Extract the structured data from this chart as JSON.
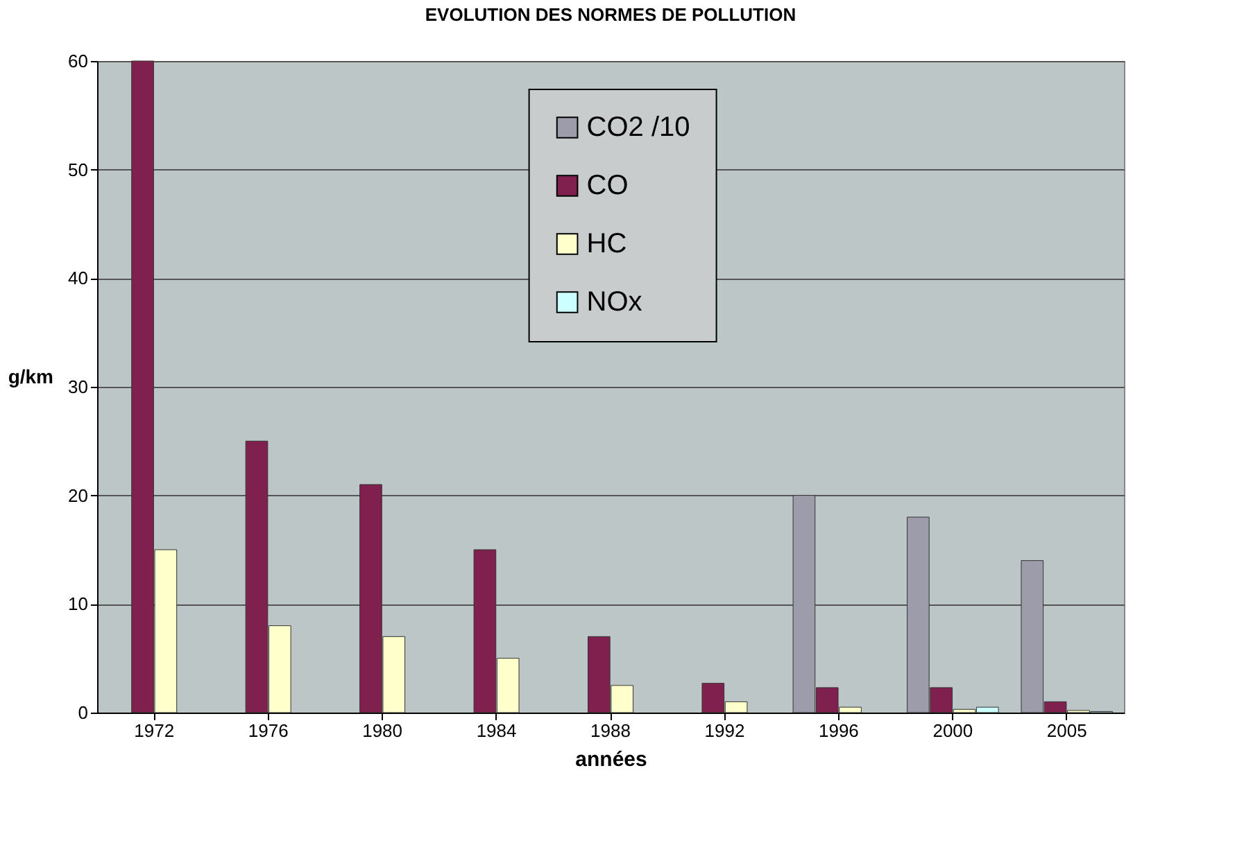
{
  "chart_data": {
    "type": "bar",
    "title": "EVOLUTION DES NORMES DE POLLUTION",
    "xlabel": "années",
    "ylabel": "g/km",
    "categories": [
      "1972",
      "1976",
      "1980",
      "1984",
      "1988",
      "1992",
      "1996",
      "2000",
      "2005"
    ],
    "series": [
      {
        "name": "CO2 /10",
        "color": "#9c9cab",
        "values": [
          null,
          null,
          null,
          null,
          null,
          null,
          20,
          18,
          14
        ]
      },
      {
        "name": "CO",
        "color": "#80204f",
        "values": [
          60,
          25,
          21,
          15,
          7,
          2.7,
          2.3,
          2.3,
          1
        ]
      },
      {
        "name": "HC",
        "color": "#ffffcc",
        "values": [
          15,
          8,
          7,
          5,
          2.5,
          1,
          0.5,
          0.3,
          0.2
        ]
      },
      {
        "name": "NOx",
        "color": "#ccffff",
        "values": [
          null,
          null,
          null,
          null,
          null,
          null,
          null,
          0.5,
          0.1
        ]
      }
    ],
    "ylim": [
      0,
      60
    ],
    "yticks": [
      0,
      10,
      20,
      30,
      40,
      50,
      60
    ],
    "grid": "y",
    "legend": "top"
  }
}
